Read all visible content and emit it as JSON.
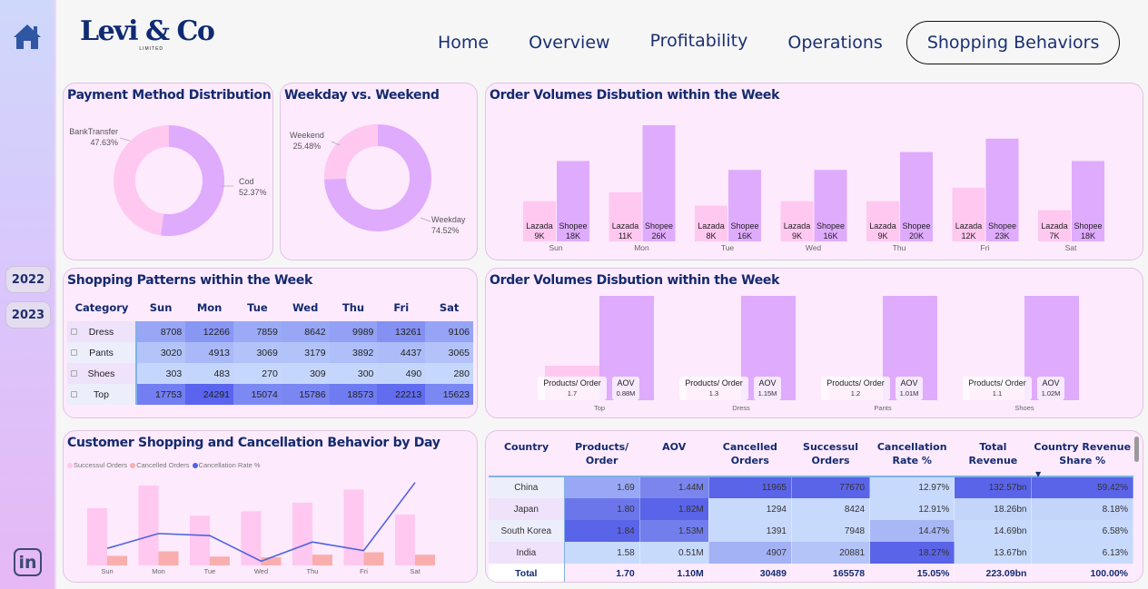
{
  "brand": {
    "name": "Levi & Co",
    "subtitle": "LIMITED"
  },
  "nav": [
    {
      "label": "Home",
      "active": false
    },
    {
      "label": "Overview",
      "active": false
    },
    {
      "label": "Profitability",
      "active": false
    },
    {
      "label": "Operations",
      "active": false
    },
    {
      "label": "Shopping Behaviors",
      "active": true
    }
  ],
  "sidebar": {
    "home_icon": "home-icon",
    "years": [
      "2022",
      "2023"
    ],
    "social_icon": "linkedin-icon",
    "social_label": "in"
  },
  "colors": {
    "accent": "#142a6e",
    "pink": "#ffc8f0",
    "purple": "#dfabfd",
    "salmon": "#f9aeae",
    "line": "#4f62e0",
    "card_bg": "#fdeafd"
  },
  "payment_method": {
    "title": "Payment Method Distribution",
    "slices": [
      {
        "label": "Cod",
        "value": 52.37,
        "display": "52.37%"
      },
      {
        "label": "BankTransfer",
        "value": 47.63,
        "display": "47.63%"
      }
    ]
  },
  "weekday_weekend": {
    "title": "Weekday vs. Weekend",
    "slices": [
      {
        "label": "Weekday",
        "value": 74.52,
        "display": "74.52%"
      },
      {
        "label": "Weekend",
        "value": 25.48,
        "display": "25.48%"
      }
    ]
  },
  "order_volumes": {
    "title": "Order Volumes Disbution within the Week",
    "series_names": [
      "Lazada",
      "Shopee"
    ],
    "categories": [
      "Sun",
      "Mon",
      "Tue",
      "Wed",
      "Thu",
      "Fri",
      "Sat"
    ],
    "lazada": [
      9,
      11,
      8,
      9,
      9,
      12,
      7
    ],
    "shopee": [
      18,
      26,
      16,
      16,
      20,
      23,
      18
    ],
    "lazada_labels": [
      "9K",
      "11K",
      "8K",
      "9K",
      "9K",
      "12K",
      "7K"
    ],
    "shopee_labels": [
      "18K",
      "26K",
      "16K",
      "16K",
      "20K",
      "23K",
      "18K"
    ]
  },
  "shopping_patterns": {
    "title": "Shopping Patterns within the Week",
    "columns": [
      "Category",
      "Sun",
      "Mon",
      "Tue",
      "Wed",
      "Thu",
      "Fri",
      "Sat"
    ],
    "rows": [
      {
        "category": "Dress",
        "values": [
          8708,
          12266,
          7859,
          8642,
          9989,
          13261,
          9106
        ]
      },
      {
        "category": "Pants",
        "values": [
          3020,
          4913,
          3069,
          3179,
          3892,
          4437,
          3065
        ]
      },
      {
        "category": "Shoes",
        "values": [
          303,
          483,
          270,
          309,
          300,
          490,
          280
        ]
      },
      {
        "category": "Top",
        "values": [
          17753,
          24291,
          15074,
          15786,
          18573,
          22213,
          15623
        ]
      }
    ]
  },
  "category_metrics": {
    "title": "Order Volumes Disbution within the Week",
    "categories": [
      "Top",
      "Dress",
      "Pants",
      "Shoes"
    ],
    "products_per_order": [
      1.7,
      1.3,
      1.2,
      1.1
    ],
    "aov_m": [
      0.88,
      1.15,
      1.01,
      1.02
    ],
    "ppo_label": "Products/ Order",
    "aov_label": "AOV",
    "ppo_display": [
      "1.7",
      "1.3",
      "1.2",
      "1.1"
    ],
    "aov_display": [
      "0.88M",
      "1.15M",
      "1.01M",
      "1.02M"
    ]
  },
  "cancellation_chart": {
    "title": "Customer Shopping and Cancellation Behavior by Day",
    "legend": [
      "Successul Orders",
      "Cancelled Orders",
      "Cancellation Rate %"
    ],
    "categories": [
      "Sun",
      "Mon",
      "Tue",
      "Wed",
      "Thu",
      "Fri",
      "Sat"
    ],
    "successful_orders": [
      24000,
      33500,
      20800,
      22700,
      26300,
      31800,
      21300
    ],
    "cancelled_orders": [
      4000,
      5900,
      3700,
      3400,
      4500,
      5500,
      4500
    ],
    "cancellation_rate": [
      14.3,
      15.0,
      14.9,
      13.7,
      14.6,
      14.2,
      17.4
    ]
  },
  "country_table": {
    "columns": [
      "Country",
      "Products/ Order",
      "AOV",
      "Cancelled Orders",
      "Successul Orders",
      "Cancellation Rate %",
      "Total Revenue",
      "Country Revenue Share %"
    ],
    "sort_column": "Country Revenue Share %",
    "rows": [
      {
        "country": "China",
        "ppo": "1.69",
        "aov": "1.44M",
        "cancelled": "11965",
        "successful": "77670",
        "rate": "12.97%",
        "revenue": "132.57bn",
        "share": "59.42%"
      },
      {
        "country": "Japan",
        "ppo": "1.80",
        "aov": "1.82M",
        "cancelled": "1294",
        "successful": "8424",
        "rate": "12.91%",
        "revenue": "18.26bn",
        "share": "8.18%"
      },
      {
        "country": "South Korea",
        "ppo": "1.84",
        "aov": "1.53M",
        "cancelled": "1391",
        "successful": "7948",
        "rate": "14.47%",
        "revenue": "14.69bn",
        "share": "6.58%"
      },
      {
        "country": "India",
        "ppo": "1.58",
        "aov": "0.51M",
        "cancelled": "4907",
        "successful": "20881",
        "rate": "18.27%",
        "revenue": "13.67bn",
        "share": "6.13%"
      }
    ],
    "total": {
      "country": "Total",
      "ppo": "1.70",
      "aov": "1.10M",
      "cancelled": "30489",
      "successful": "165578",
      "rate": "15.05%",
      "revenue": "223.09bn",
      "share": "100.00%"
    }
  }
}
